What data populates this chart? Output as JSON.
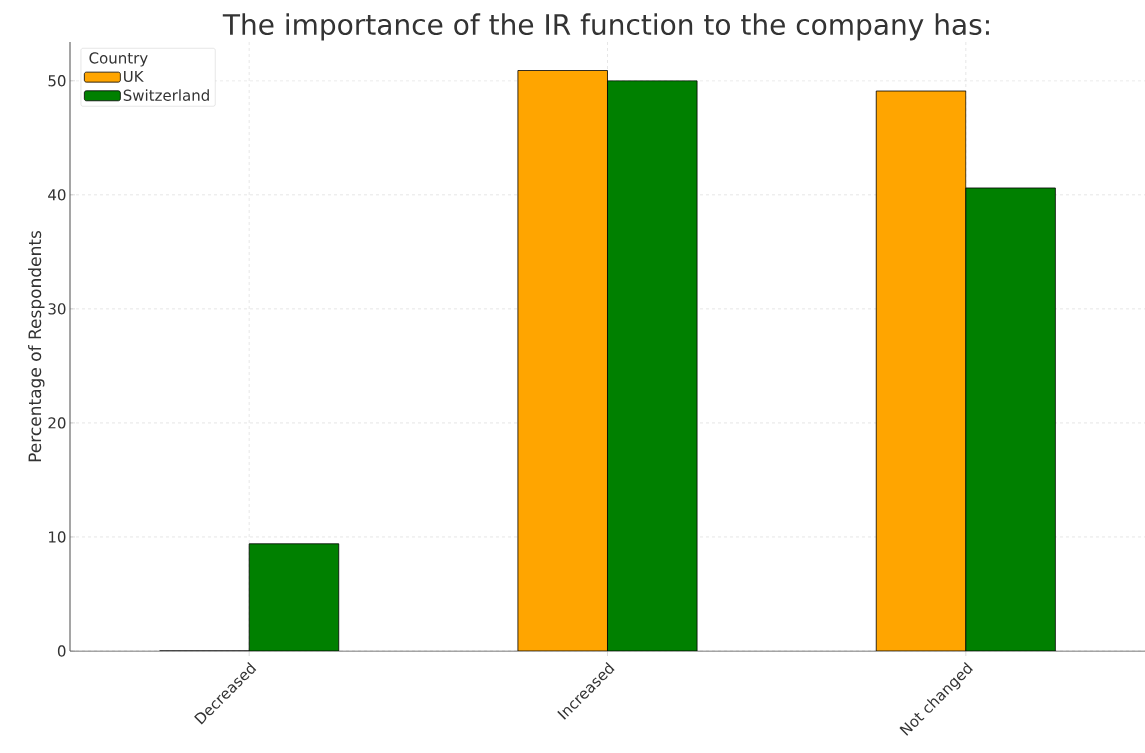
{
  "chart_data": {
    "type": "bar",
    "title": "The importance of the IR function to the company has:",
    "ylabel": "Percentage of Respondents",
    "legend_title": "Country",
    "categories": [
      "Decreased",
      "Increased",
      "Not changed"
    ],
    "series": [
      {
        "name": "UK",
        "color": "#ffa500",
        "values": [
          0,
          50.9,
          49.1
        ]
      },
      {
        "name": "Switzerland",
        "color": "#008000",
        "values": [
          9.4,
          50.0,
          40.6
        ]
      }
    ],
    "ylim": [
      0,
      53.4
    ],
    "yticks": [
      0,
      10,
      20,
      30,
      40,
      50
    ],
    "grid": true,
    "legend": "top left"
  }
}
